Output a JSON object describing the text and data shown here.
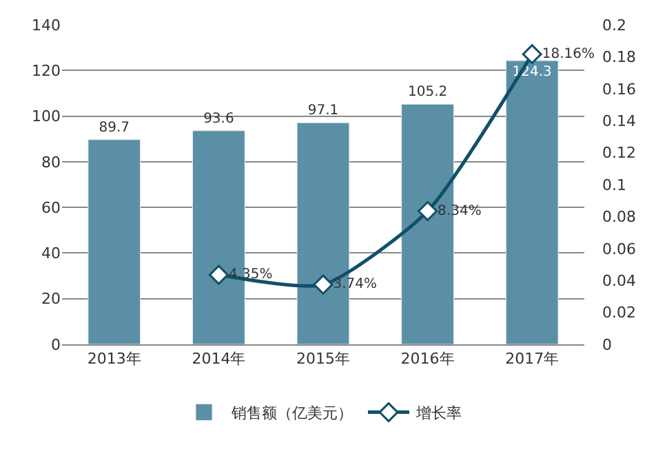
{
  "chart_data": {
    "type": "bar",
    "categories": [
      "2013年",
      "2014年",
      "2015年",
      "2016年",
      "2017年"
    ],
    "series": [
      {
        "name": "销售额（亿美元）",
        "color": "#5b8fa6",
        "values": [
          89.7,
          93.6,
          97.1,
          105.2,
          124.3
        ],
        "value_labels": [
          "89.7",
          "93.6",
          "97.1",
          "105.2",
          "124.3"
        ]
      },
      {
        "name": "增长率",
        "type": "line",
        "axis": "y2",
        "color": "#11506a",
        "marker": "diamond",
        "values": [
          null,
          0.0435,
          0.0374,
          0.0834,
          0.1816
        ],
        "value_labels": [
          null,
          "4.35%",
          "3.74%",
          "8.34%",
          "18.16%"
        ]
      }
    ],
    "ylim": [
      0,
      140
    ],
    "yticks": [
      0,
      20,
      40,
      60,
      80,
      100,
      120,
      140
    ],
    "y2lim": [
      0,
      0.2
    ],
    "y2ticks": [
      0,
      0.02,
      0.04,
      0.06,
      0.08,
      0.1,
      0.12,
      0.14,
      0.16,
      0.18,
      0.2
    ],
    "grid": "y",
    "legend": "bottom"
  }
}
